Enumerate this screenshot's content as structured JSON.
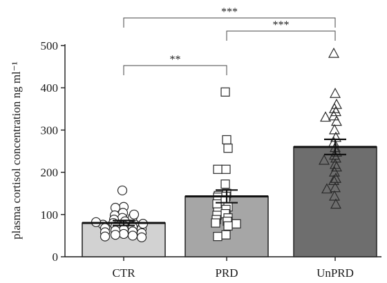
{
  "chart_data": {
    "type": "bar",
    "ylabel": "plasma cortisol concentration ng ml⁻¹",
    "ylim": [
      0,
      500
    ],
    "yticks": [
      0,
      100,
      200,
      300,
      400,
      500
    ],
    "categories": [
      "CTR",
      "PRD",
      "UnPRD"
    ],
    "values": [
      80,
      143,
      260
    ],
    "sem": [
      6,
      15,
      18
    ],
    "bar_colors": [
      "#d2d2d2",
      "#a6a6a6",
      "#6e6e6e"
    ],
    "marker_shapes": [
      "circle",
      "square",
      "triangle"
    ],
    "points": [
      [
        157,
        118,
        116,
        104,
        98,
        92,
        88,
        84,
        80,
        78,
        76,
        74,
        72,
        70,
        68,
        66,
        64,
        62,
        60,
        58,
        56,
        54,
        52,
        50,
        48,
        46,
        78,
        82,
        94,
        100
      ],
      [
        390,
        277,
        257,
        207,
        207,
        172,
        150,
        145,
        143,
        141,
        132,
        125,
        118,
        112,
        106,
        102,
        98,
        92,
        88,
        84,
        80,
        78,
        73,
        52,
        48
      ],
      [
        481,
        386,
        360,
        350,
        343,
        333,
        330,
        320,
        300,
        282,
        270,
        258,
        247,
        240,
        233,
        228,
        218,
        212,
        200,
        185,
        180,
        163,
        160,
        143,
        124
      ]
    ],
    "significance": [
      {
        "from": 0,
        "to": 1,
        "label": "**"
      },
      {
        "from": 1,
        "to": 2,
        "label": "***"
      },
      {
        "from": 0,
        "to": 2,
        "label": "***"
      }
    ]
  }
}
